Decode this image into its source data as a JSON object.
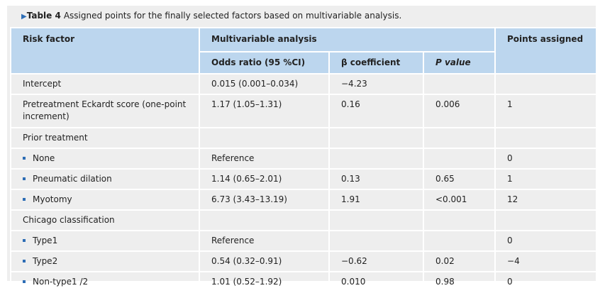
{
  "title": {
    "label": "Table 4",
    "text": "Assigned points for the finally selected factors based on multivariable analysis."
  },
  "header": {
    "risk_factor": "Risk factor",
    "multivariable": "Multivariable analysis",
    "odds_ratio": "Odds ratio (95 %CI)",
    "beta": "β coefficient",
    "p_value": "P value",
    "points": "Points assigned"
  },
  "rows": [
    {
      "risk_factor": "Intercept",
      "odds_ratio": "0.015 (0.001–0.034)",
      "beta": "−4.23"
    },
    {
      "risk_factor": "Pretreatment Eckardt score (one-point increment)",
      "odds_ratio": "1.17 (1.05–1.31)",
      "beta": "0.16",
      "p_value": "0.006",
      "points": "1"
    },
    {
      "risk_factor": "Prior treatment"
    },
    {
      "risk_factor": "None",
      "odds_ratio": "Reference",
      "points": "0"
    },
    {
      "risk_factor": "Pneumatic dilation",
      "odds_ratio": "1.14 (0.65–2.01)",
      "beta": "0.13",
      "p_value": "0.65",
      "points": "1"
    },
    {
      "risk_factor": "Myotomy",
      "odds_ratio": "6.73 (3.43–13.19)",
      "beta": "1.91",
      "p_value": "<0.001",
      "points": "12"
    },
    {
      "risk_factor": "Chicago classification"
    },
    {
      "risk_factor": "Type1",
      "odds_ratio": "Reference",
      "points": "0"
    },
    {
      "risk_factor": "Type2",
      "odds_ratio": "0.54 (0.32–0.91)",
      "beta": "−0.62",
      "p_value": "0.02",
      "points": "−4"
    },
    {
      "risk_factor": "Non-type1 /2",
      "odds_ratio": "1.01 (0.52–1.92)",
      "beta": "0.010",
      "p_value": "0.98",
      "points": "0"
    }
  ]
}
